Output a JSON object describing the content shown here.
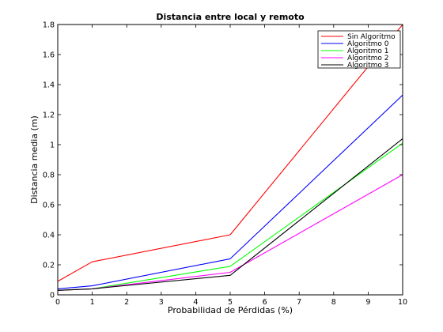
{
  "chart_data": {
    "type": "line",
    "title": "Distancia entre local y remoto",
    "xlabel": "Probabilidad de Pérdidas (%)",
    "ylabel": "Distancia media (m)",
    "xlim": [
      0,
      10
    ],
    "ylim": [
      0,
      1.8
    ],
    "xticks": [
      "0",
      "1",
      "2",
      "3",
      "4",
      "5",
      "6",
      "7",
      "8",
      "9",
      "10"
    ],
    "yticks": [
      "0",
      "0.2",
      "0.4",
      "0.6",
      "0.8",
      "1",
      "1.2",
      "1.4",
      "1.6",
      "1.8"
    ],
    "grid": false,
    "legend_position": "top-right",
    "x": [
      0,
      1,
      5,
      10
    ],
    "series": [
      {
        "name": "Sin Algoritmo",
        "color": "#ff0000",
        "values": [
          0.09,
          0.22,
          0.4,
          1.8
        ]
      },
      {
        "name": "Algoritmo 0",
        "color": "#0000ff",
        "values": [
          0.04,
          0.06,
          0.24,
          1.33
        ]
      },
      {
        "name": "Algoritmo 1",
        "color": "#00ff00",
        "values": [
          0.03,
          0.04,
          0.19,
          1.01
        ]
      },
      {
        "name": "Algoritmo 2",
        "color": "#ff00ff",
        "values": [
          0.03,
          0.04,
          0.15,
          0.8
        ]
      },
      {
        "name": "Algoritmo 3",
        "color": "#000000",
        "values": [
          0.03,
          0.04,
          0.13,
          1.04
        ]
      }
    ]
  }
}
